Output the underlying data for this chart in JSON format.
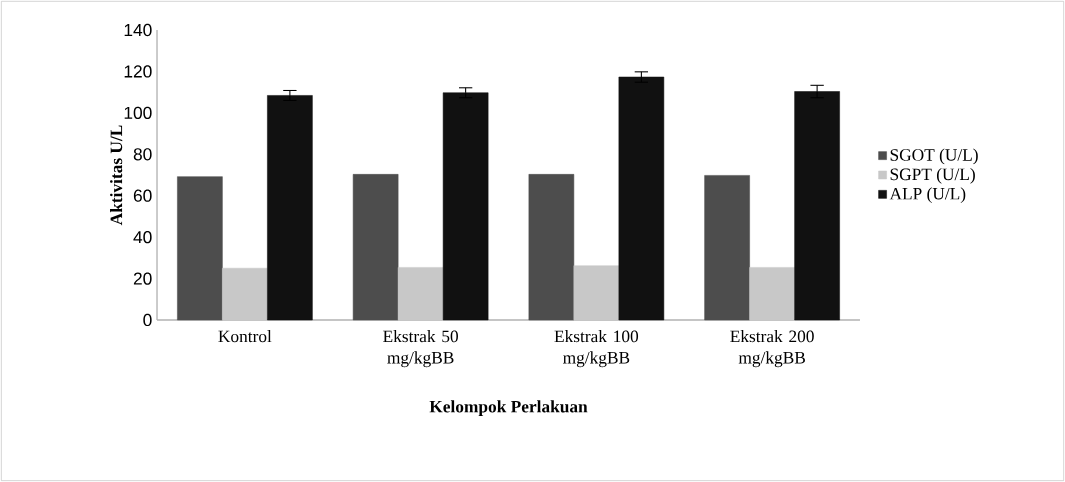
{
  "chart_data": {
    "type": "bar",
    "xlabel": "Kelompok Perlakuan",
    "ylabel": "Aktivitas U/L",
    "categories": [
      "Kontrol",
      "Ekstrak 50 mg/kgBB",
      "Ekstrak 100 mg/kgBB",
      "Ekstrak 200 mg/kgBB"
    ],
    "series": [
      {
        "name": "SGOT (U/L)",
        "color": "#4d4d4d",
        "values": [
          69.2,
          70.3,
          70.3,
          69.8
        ]
      },
      {
        "name": "SGPT (U/L)",
        "color": "#c8c8c8",
        "values": [
          25,
          25.4,
          26.2,
          25.4
        ]
      },
      {
        "name": "ALP (U/L)",
        "color": "#111111",
        "values": [
          108.4,
          109.7,
          117.3,
          110.3
        ],
        "errors": [
          2.4,
          2.4,
          2.5,
          3
        ]
      }
    ],
    "ylim": [
      0,
      140
    ],
    "yticks": [
      0,
      20,
      40,
      60,
      80,
      100,
      120,
      140
    ],
    "legend": "right",
    "grid": false
  }
}
